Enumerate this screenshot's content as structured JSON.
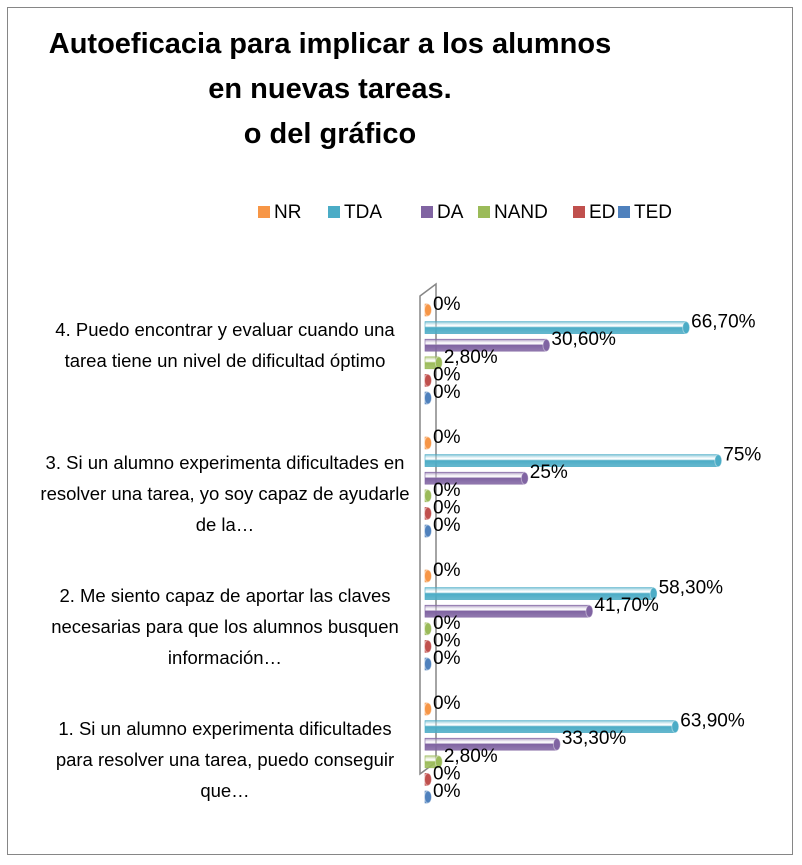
{
  "chart_data": {
    "type": "bar",
    "orientation": "horizontal",
    "title": "Autoeficacia para implicar a los alumnos\nen nuevas tareas.\no del gráfico",
    "categories": [
      "1. Si un alumno experimenta dificultades para resolver una tarea, puedo conseguir que…",
      "2. Me siento capaz de aportar las claves necesarias para que los alumnos busquen información…",
      "3. Si un alumno experimenta dificultades en resolver una tarea, yo soy capaz de ayudarle de la…",
      "4. Puedo encontrar y evaluar cuando una tarea tiene un nivel de dificultad óptimo"
    ],
    "series": [
      {
        "name": "NR",
        "color": "#f79646",
        "values": [
          0,
          0,
          0,
          0
        ],
        "value_labels": [
          "0%",
          "0%",
          "0%",
          "0%"
        ]
      },
      {
        "name": "TDA",
        "color": "#4bacc6",
        "values": [
          63.9,
          58.3,
          75,
          66.7
        ],
        "value_labels": [
          "63,90%",
          "58,30%",
          "75%",
          "66,70%"
        ]
      },
      {
        "name": "DA",
        "color": "#8064a2",
        "values": [
          33.3,
          41.7,
          25,
          30.6
        ],
        "value_labels": [
          "33,30%",
          "41,70%",
          "25%",
          "30,60%"
        ]
      },
      {
        "name": "NAND",
        "color": "#9bbb59",
        "values": [
          2.8,
          0,
          0,
          2.8
        ],
        "value_labels": [
          "2,80%",
          "0%",
          "0%",
          "2,80%"
        ]
      },
      {
        "name": "ED",
        "color": "#c0504d",
        "values": [
          0,
          0,
          0,
          0
        ],
        "value_labels": [
          "0%",
          "0%",
          "0%",
          "0%"
        ]
      },
      {
        "name": "TED",
        "color": "#4f81bd",
        "values": [
          0,
          0,
          0,
          0
        ],
        "value_labels": [
          "0%",
          "0%",
          "0%",
          "0%"
        ]
      }
    ],
    "legend": "top"
  }
}
